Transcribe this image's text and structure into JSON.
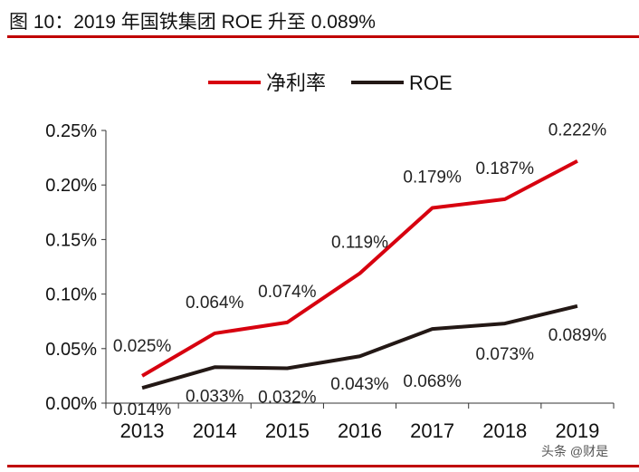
{
  "title": "图 10：2019 年国铁集团 ROE 升至 0.089%",
  "watermark": "头条 @财是",
  "chart_data": {
    "type": "line",
    "categories": [
      "2013",
      "2014",
      "2015",
      "2016",
      "2017",
      "2018",
      "2019"
    ],
    "series": [
      {
        "name": "净利率",
        "color": "#d7000f",
        "values": [
          0.025,
          0.064,
          0.074,
          0.119,
          0.179,
          0.187,
          0.222
        ],
        "labels": [
          "0.025%",
          "0.064%",
          "0.074%",
          "0.119%",
          "0.179%",
          "0.187%",
          "0.222%"
        ]
      },
      {
        "name": "ROE",
        "color": "#231815",
        "values": [
          0.014,
          0.033,
          0.032,
          0.043,
          0.068,
          0.073,
          0.089
        ],
        "labels": [
          "0.014%",
          "0.033%",
          "0.032%",
          "0.043%",
          "0.068%",
          "0.073%",
          "0.089%"
        ]
      }
    ],
    "yticks": [
      "0.00%",
      "0.05%",
      "0.10%",
      "0.15%",
      "0.20%",
      "0.25%"
    ],
    "ylim": [
      0,
      0.25
    ],
    "unit": "%",
    "grid": false,
    "legend": "top-center"
  }
}
